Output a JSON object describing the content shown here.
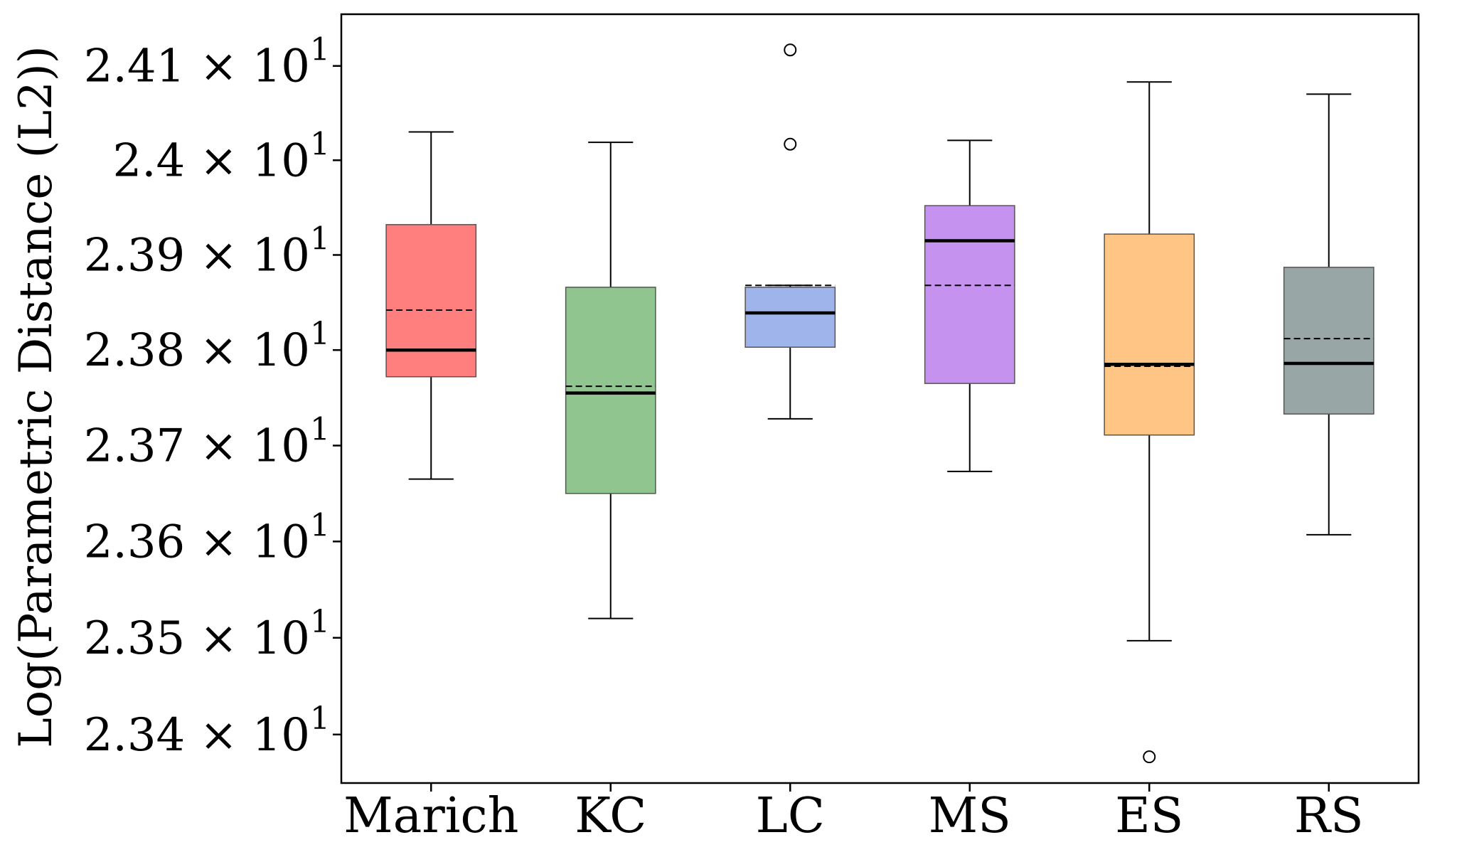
{
  "chart_data": {
    "type": "box",
    "categories": [
      "Marich",
      "KC",
      "LC",
      "MS",
      "ES",
      "RS"
    ],
    "ylabel": "Log(Parametric Distance (L2))",
    "xlabel": "",
    "y_scale": "log",
    "ylim": [
      23.35,
      24.155
    ],
    "yticks": [
      {
        "value": 23.4,
        "mantissa": "2.34",
        "base": "10",
        "exp": "1"
      },
      {
        "value": 23.5,
        "mantissa": "2.35",
        "base": "10",
        "exp": "1"
      },
      {
        "value": 23.6,
        "mantissa": "2.36",
        "base": "10",
        "exp": "1"
      },
      {
        "value": 23.7,
        "mantissa": "2.37",
        "base": "10",
        "exp": "1"
      },
      {
        "value": 23.8,
        "mantissa": "2.38",
        "base": "10",
        "exp": "1"
      },
      {
        "value": 23.9,
        "mantissa": "2.39",
        "base": "10",
        "exp": "1"
      },
      {
        "value": 24.0,
        "mantissa": "2.4",
        "base": "10",
        "exp": "1"
      },
      {
        "value": 24.1,
        "mantissa": "2.41",
        "base": "10",
        "exp": "1"
      }
    ],
    "boxes": [
      {
        "name": "Marich",
        "color": "#ff7f7f",
        "whisker_low": 23.665,
        "q1": 23.772,
        "median": 23.8,
        "mean": 23.842,
        "q3": 23.932,
        "whisker_high": 24.03,
        "outliers": []
      },
      {
        "name": "KC",
        "color": "#90c590",
        "whisker_low": 23.52,
        "q1": 23.65,
        "median": 23.755,
        "mean": 23.762,
        "q3": 23.866,
        "whisker_high": 24.019,
        "outliers": []
      },
      {
        "name": "LC",
        "color": "#9fb4ea",
        "whisker_low": 23.728,
        "q1": 23.803,
        "median": 23.839,
        "mean": 23.868,
        "q3": 23.866,
        "whisker_high": 23.868,
        "outliers": [
          24.117,
          24.017
        ]
      },
      {
        "name": "MS",
        "color": "#c593ef",
        "whisker_low": 23.673,
        "q1": 23.765,
        "median": 23.915,
        "mean": 23.868,
        "q3": 23.952,
        "whisker_high": 24.021,
        "outliers": []
      },
      {
        "name": "ES",
        "color": "#fec584",
        "whisker_low": 23.497,
        "q1": 23.711,
        "median": 23.785,
        "mean": 23.783,
        "q3": 23.922,
        "whisker_high": 24.083,
        "outliers": [
          23.377
        ]
      },
      {
        "name": "RS",
        "color": "#98a6a6",
        "whisker_low": 23.607,
        "q1": 23.733,
        "median": 23.786,
        "mean": 23.812,
        "q3": 23.887,
        "whisker_high": 24.07,
        "outliers": []
      }
    ]
  }
}
